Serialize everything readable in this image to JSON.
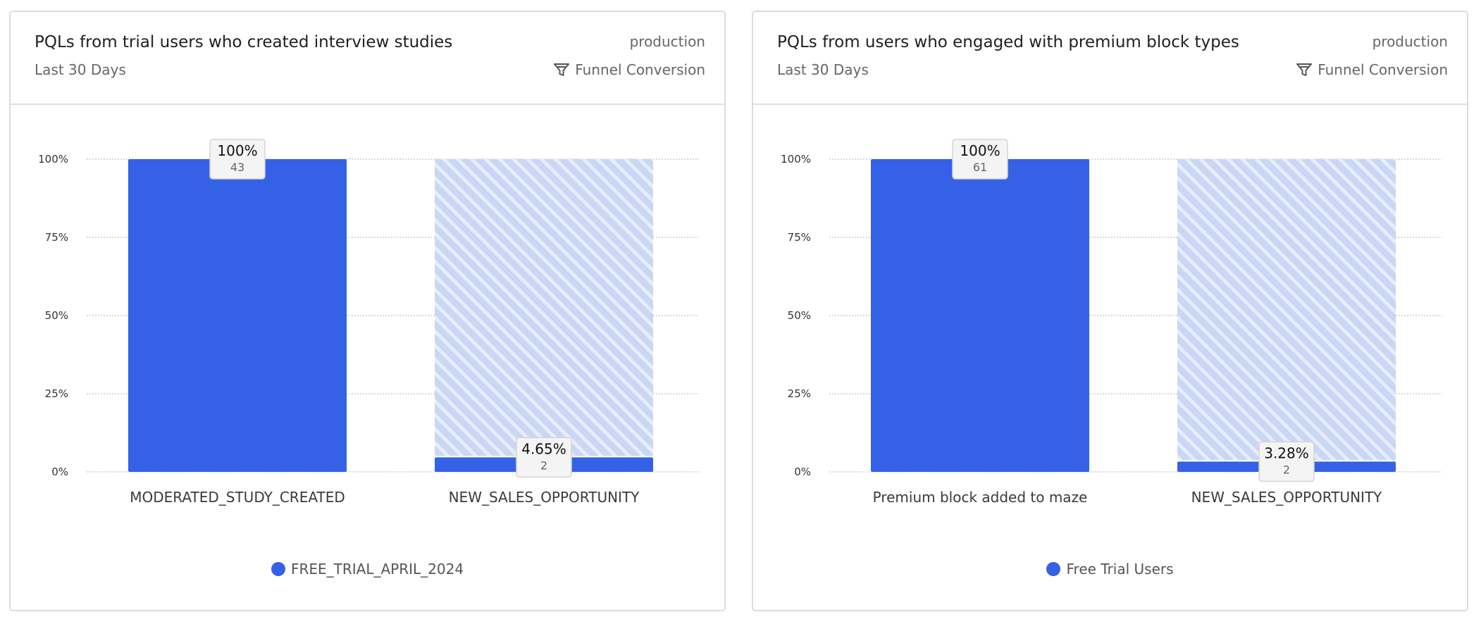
{
  "colors": {
    "bar": "#3461e6",
    "remainder": "#c9d6f6",
    "stripe": "#ffffff"
  },
  "cards": [
    {
      "title": "PQLs from trial users who created interview studies",
      "subtitle": "Last 30 Days",
      "environment": "production",
      "chart_type_label": "Funnel Conversion",
      "legend": "FREE_TRIAL_APRIL_2024"
    },
    {
      "title": "PQLs from users who engaged with premium block types",
      "subtitle": "Last 30 Days",
      "environment": "production",
      "chart_type_label": "Funnel Conversion",
      "legend": "Free Trial Users"
    }
  ],
  "chart_data": [
    {
      "type": "bar",
      "title": "PQLs from trial users who created interview studies",
      "categories": [
        "MODERATED_STUDY_CREATED",
        "NEW_SALES_OPPORTUNITY"
      ],
      "series": [
        {
          "name": "FREE_TRIAL_APRIL_2024",
          "values": [
            100,
            4.65
          ],
          "value_labels": [
            "100%",
            "4.65%"
          ],
          "counts": [
            "43",
            "2"
          ]
        }
      ],
      "ylim": [
        0,
        100
      ],
      "yticks": [
        "0%",
        "25%",
        "50%",
        "75%",
        "100%"
      ],
      "ytick_values": [
        0,
        25,
        50,
        75,
        100
      ],
      "grid": true
    },
    {
      "type": "bar",
      "title": "PQLs from users who engaged with premium block types",
      "categories": [
        "Premium block added to maze",
        "NEW_SALES_OPPORTUNITY"
      ],
      "series": [
        {
          "name": "Free Trial Users",
          "values": [
            100,
            3.28
          ],
          "value_labels": [
            "100%",
            "3.28%"
          ],
          "counts": [
            "61",
            "2"
          ]
        }
      ],
      "ylim": [
        0,
        100
      ],
      "yticks": [
        "0%",
        "25%",
        "50%",
        "75%",
        "100%"
      ],
      "ytick_values": [
        0,
        25,
        50,
        75,
        100
      ],
      "grid": true
    }
  ]
}
